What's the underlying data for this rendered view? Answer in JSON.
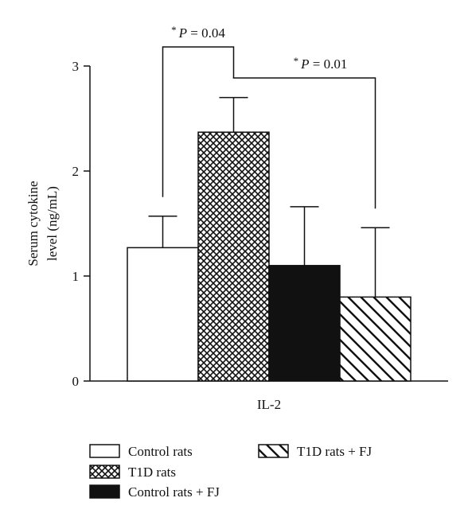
{
  "chart_data": {
    "type": "bar",
    "categories": [
      "IL-2"
    ],
    "ylabel_line1": "Serum cytokine",
    "ylabel_line2": "level (ng/mL)",
    "ylim": [
      0,
      3
    ],
    "yticks": [
      0,
      1,
      2,
      3
    ],
    "series": [
      {
        "name": "Control rats",
        "value": 1.27,
        "error": 0.3,
        "fill": "white"
      },
      {
        "name": "T1D rats",
        "value": 2.37,
        "error": 0.33,
        "fill": "crosshatch"
      },
      {
        "name": "Control rats + FJ",
        "value": 1.1,
        "error": 0.56,
        "fill": "black"
      },
      {
        "name": "T1D rats + FJ",
        "value": 0.8,
        "error": 0.66,
        "fill": "diagonal"
      }
    ],
    "annotations": [
      {
        "star": "*",
        "label": "P = 0.04",
        "from": 0,
        "to": 1
      },
      {
        "star": "*",
        "label": "P = 0.01",
        "from": 1,
        "to": 3
      }
    ],
    "colors": {
      "ink": "#111111",
      "background": "#ffffff"
    }
  }
}
